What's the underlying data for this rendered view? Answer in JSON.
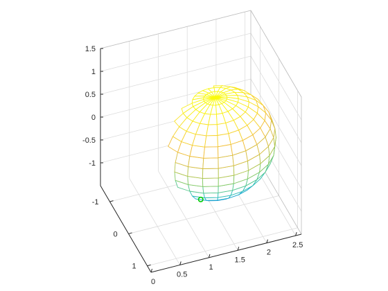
{
  "chart_data": {
    "type": "surface-mesh",
    "title": "",
    "xlabel": "",
    "ylabel": "",
    "zlabel": "",
    "xlim": [
      0,
      2.6
    ],
    "ylim": [
      -1.5,
      1.2
    ],
    "zlim": [
      -1.5,
      1.5
    ],
    "x_ticks": [
      "0",
      "0.5",
      "1",
      "1.5",
      "2",
      "2.5"
    ],
    "y_ticks": [
      "-1",
      "0",
      "1"
    ],
    "z_ticks": [
      "-1",
      "-0.5",
      "0",
      "0.5",
      "1",
      "1.5"
    ],
    "sphere": {
      "center": [
        1.5,
        0,
        0
      ],
      "radius": 1,
      "meridians": 24,
      "parallels": 16
    },
    "colormap": [
      "#0072BD",
      "#1FA6D9",
      "#35C3B0",
      "#7DCB6A",
      "#BFC44A",
      "#F0B93A",
      "#F9DC2C",
      "#F9FB0E"
    ],
    "marker": {
      "color": "#00CC00",
      "shape": "circle-outline"
    },
    "grid": true,
    "box": "back-planes"
  }
}
